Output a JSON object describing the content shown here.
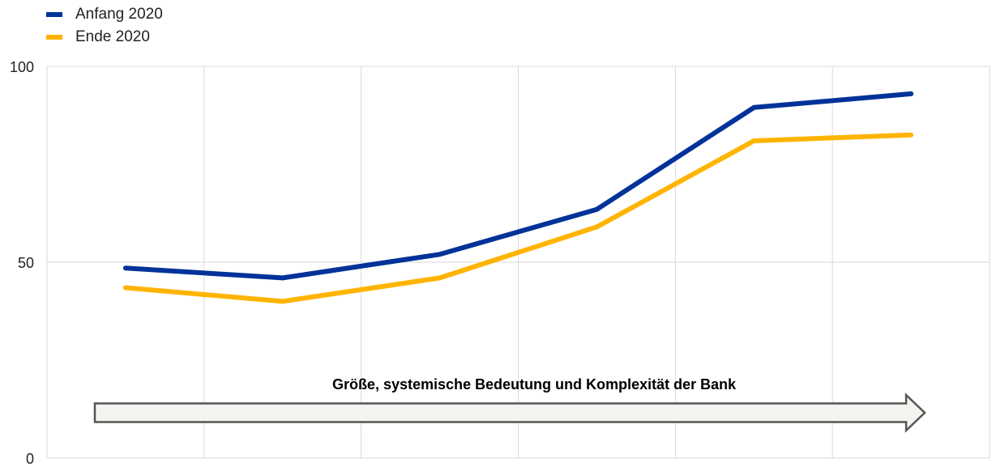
{
  "chart_data": {
    "type": "line",
    "title": "",
    "xlabel": "",
    "ylabel": "",
    "ylim": [
      0,
      100
    ],
    "yticks": [
      0,
      50,
      100
    ],
    "x_points": 6,
    "grid": true,
    "legend_position": "top-left",
    "annotation": "Größe, systemische Bedeutung und Komplexität der Bank",
    "series": [
      {
        "name": "Anfang 2020",
        "color": "#003299",
        "values": [
          48.5,
          46,
          52,
          63.5,
          89.5,
          93
        ]
      },
      {
        "name": "Ende 2020",
        "color": "#FFB400",
        "values": [
          43.5,
          40,
          46,
          59,
          81,
          82.5
        ]
      }
    ]
  }
}
